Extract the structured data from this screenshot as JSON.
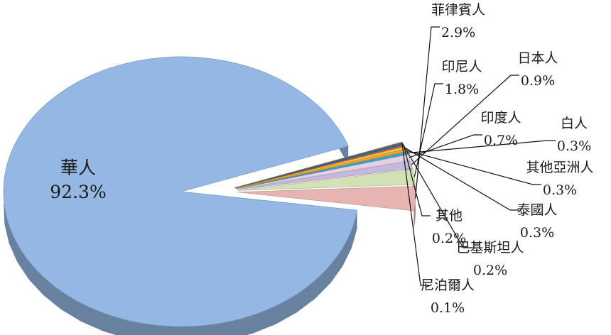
{
  "chart_data": {
    "type": "pie",
    "title": "",
    "legend": "none",
    "slices": [
      {
        "name": "華人",
        "value": 92.3,
        "label": "92.3%",
        "color": "#94b8e3"
      },
      {
        "name": "菲律賓人",
        "value": 2.9,
        "label": "2.9%",
        "color": "#e6b4b3"
      },
      {
        "name": "印尼人",
        "value": 1.8,
        "label": "1.8%",
        "color": "#d3e2b4"
      },
      {
        "name": "日本人",
        "value": 0.9,
        "label": "0.9%",
        "color": "#c6b9dc"
      },
      {
        "name": "印度人",
        "value": 0.7,
        "label": "0.7%",
        "color": "#e6d0e6"
      },
      {
        "name": "白人",
        "value": 0.3,
        "label": "0.3%",
        "color": "#3aa3c7"
      },
      {
        "name": "其他亞洲人",
        "value": 0.3,
        "label": "0.3%",
        "color": "#e8a33c"
      },
      {
        "name": "泰國人",
        "value": 0.3,
        "label": "0.3%",
        "color": "#f0c43c"
      },
      {
        "name": "其他",
        "value": 0.2,
        "label": "0.2%",
        "color": "#c45a55"
      },
      {
        "name": "巴基斯坦人",
        "value": 0.2,
        "label": "0.2%",
        "color": "#1f6fa8"
      },
      {
        "name": "尼泊爾人",
        "value": 0.1,
        "label": "0.1%",
        "color": "#8a7a55"
      }
    ]
  }
}
